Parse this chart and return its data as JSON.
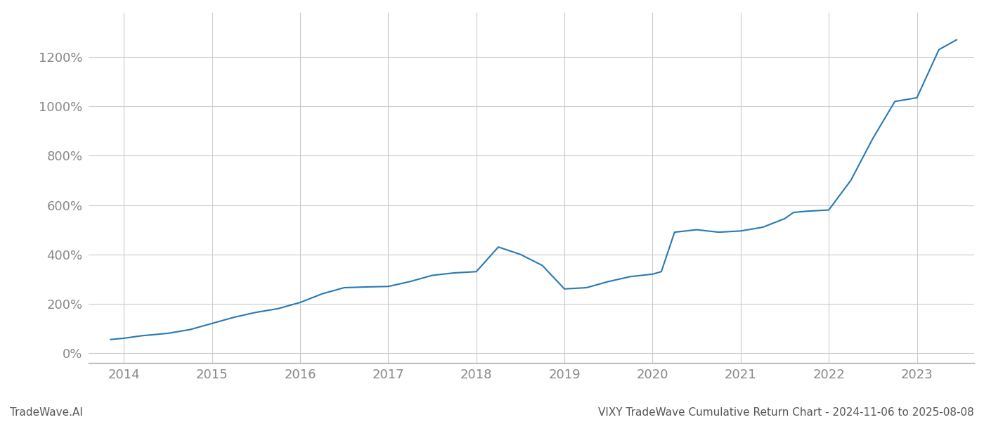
{
  "title": "VIXY TradeWave Cumulative Return Chart - 2024-11-06 to 2025-08-08",
  "left_label": "TradeWave.AI",
  "line_color": "#2878b5",
  "background_color": "#ffffff",
  "grid_color": "#cccccc",
  "x_years": [
    2014,
    2015,
    2016,
    2017,
    2018,
    2019,
    2020,
    2021,
    2022,
    2023
  ],
  "x_data": [
    2013.85,
    2014.0,
    2014.2,
    2014.5,
    2014.75,
    2015.0,
    2015.25,
    2015.5,
    2015.75,
    2016.0,
    2016.25,
    2016.5,
    2016.75,
    2017.0,
    2017.25,
    2017.5,
    2017.75,
    2018.0,
    2018.25,
    2018.5,
    2018.75,
    2019.0,
    2019.25,
    2019.5,
    2019.75,
    2020.0,
    2020.1,
    2020.25,
    2020.5,
    2020.75,
    2021.0,
    2021.25,
    2021.5,
    2021.6,
    2021.75,
    2022.0,
    2022.25,
    2022.5,
    2022.75,
    2023.0,
    2023.25,
    2023.45
  ],
  "y_data": [
    55,
    60,
    70,
    80,
    95,
    120,
    145,
    165,
    180,
    205,
    240,
    265,
    268,
    270,
    290,
    315,
    325,
    330,
    430,
    400,
    355,
    260,
    265,
    290,
    310,
    320,
    330,
    490,
    500,
    490,
    495,
    510,
    545,
    570,
    575,
    580,
    700,
    870,
    1020,
    1035,
    1230,
    1270
  ],
  "ylim": [
    -40,
    1380
  ],
  "yticks": [
    0,
    200,
    400,
    600,
    800,
    1000,
    1200
  ],
  "xlim": [
    2013.6,
    2023.65
  ],
  "title_fontsize": 11,
  "tick_fontsize": 13,
  "label_fontsize": 11,
  "line_width": 1.5
}
